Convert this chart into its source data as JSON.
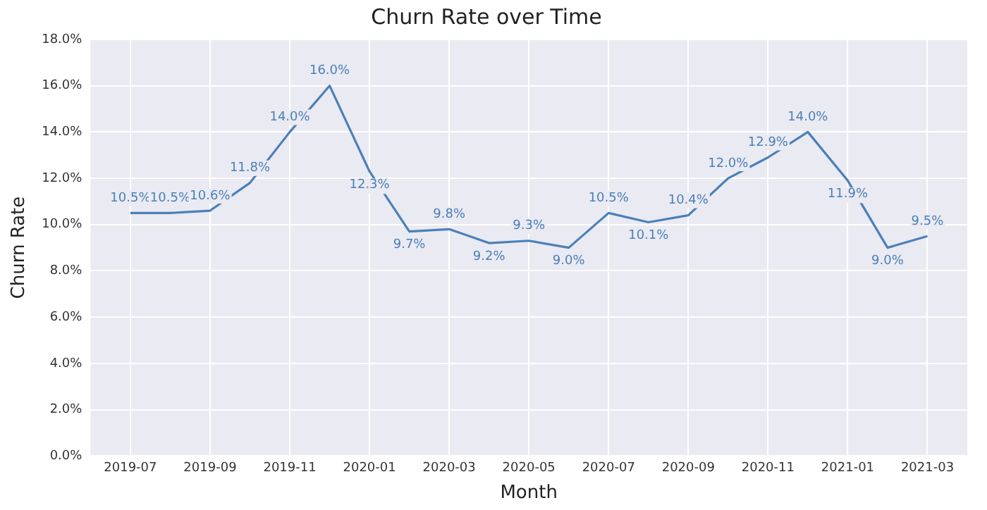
{
  "chart_data": {
    "type": "line",
    "title": "Churn Rate over Time",
    "xlabel": "Month",
    "ylabel": "Churn Rate",
    "x": [
      "2019-07",
      "2019-08",
      "2019-09",
      "2019-10",
      "2019-11",
      "2019-12",
      "2020-01",
      "2020-02",
      "2020-03",
      "2020-04",
      "2020-05",
      "2020-06",
      "2020-07",
      "2020-08",
      "2020-09",
      "2020-10",
      "2020-11",
      "2020-12",
      "2021-01",
      "2021-02",
      "2021-03"
    ],
    "series": [
      {
        "color": "#4b80b8",
        "values": [
          10.5,
          10.5,
          10.6,
          11.8,
          14.0,
          16.0,
          12.3,
          9.7,
          9.8,
          9.2,
          9.3,
          9.0,
          10.5,
          10.1,
          10.4,
          12.0,
          12.9,
          14.0,
          11.9,
          9.0,
          9.5
        ],
        "value_labels": [
          "10.5%",
          "10.5%",
          "10.6%",
          "11.8%",
          "14.0%",
          "16.0%",
          "12.3%",
          "9.7%",
          "9.8%",
          "9.2%",
          "9.3%",
          "9.0%",
          "10.5%",
          "10.1%",
          "10.4%",
          "12.0%",
          "12.9%",
          "14.0%",
          "11.9%",
          "9.0%",
          "9.5%"
        ]
      }
    ],
    "xlim": [
      "2019-06",
      "2021-04"
    ],
    "xticks": [
      "2019-07",
      "2019-09",
      "2019-11",
      "2020-01",
      "2020-03",
      "2020-05",
      "2020-07",
      "2020-09",
      "2020-11",
      "2021-01",
      "2021-03"
    ],
    "ylim": [
      0,
      18
    ],
    "yticks": [
      {
        "value": 0,
        "label": "0.0%"
      },
      {
        "value": 2,
        "label": "2.0%"
      },
      {
        "value": 4,
        "label": "4.0%"
      },
      {
        "value": 6,
        "label": "6.0%"
      },
      {
        "value": 8,
        "label": "8.0%"
      },
      {
        "value": 10,
        "label": "10.0%"
      },
      {
        "value": 12,
        "label": "12.0%"
      },
      {
        "value": 14,
        "label": "14.0%"
      },
      {
        "value": 16,
        "label": "16.0%"
      },
      {
        "value": 18,
        "label": "18.0%"
      }
    ],
    "grid": true,
    "marker": "none",
    "line_style": "solid",
    "legend": false
  }
}
